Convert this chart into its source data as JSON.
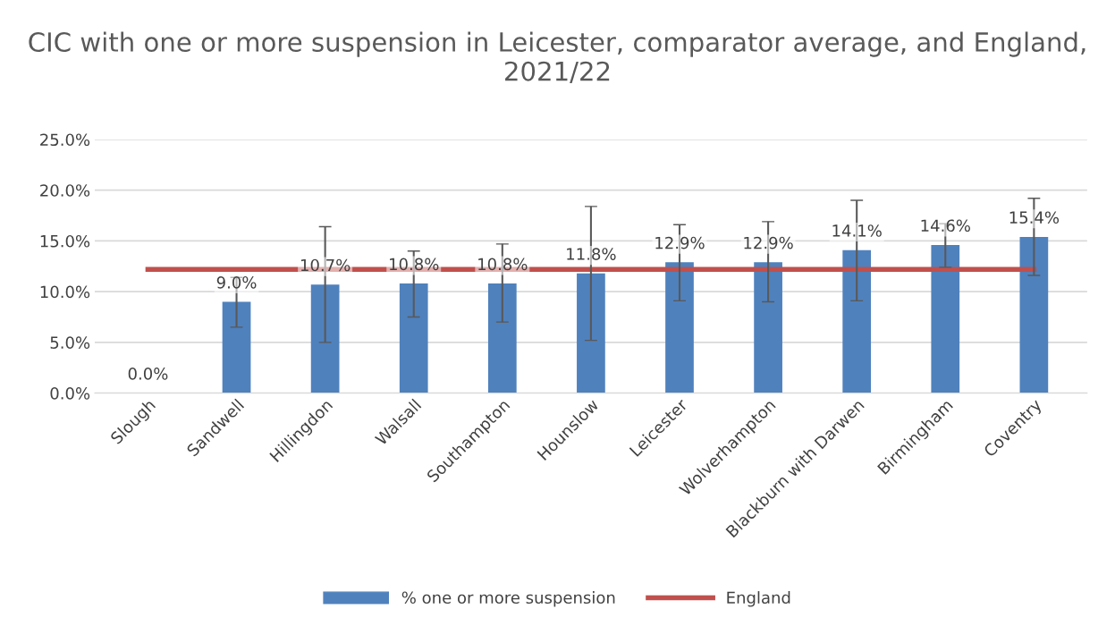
{
  "chart_data": {
    "type": "bar",
    "title": "CIC with one or more suspension in Leicester, comparator average, and England, 2021/22",
    "categories": [
      "Slough",
      "Sandwell",
      "Hillingdon",
      "Walsall",
      "Southampton",
      "Hounslow",
      "Leicester",
      "Wolverhampton",
      "Blackburn with Darwen",
      "Birmingham",
      "Coventry"
    ],
    "series": [
      {
        "name": "% one or more suspension",
        "color": "#4f81bd",
        "values": [
          0.0,
          9.0,
          10.7,
          10.8,
          10.8,
          11.8,
          12.9,
          12.9,
          14.1,
          14.6,
          15.4
        ],
        "value_labels": [
          "0.0%",
          "9.0%",
          "10.7%",
          "10.8%",
          "10.8%",
          "11.8%",
          "12.9%",
          "12.9%",
          "14.1%",
          "14.6%",
          "15.4%"
        ],
        "errors": [
          null,
          [
            6.5,
            11.4
          ],
          [
            5.0,
            16.4
          ],
          [
            7.5,
            14.0
          ],
          [
            7.0,
            14.7
          ],
          [
            5.2,
            18.4
          ],
          [
            9.1,
            16.6
          ],
          [
            9.0,
            16.9
          ],
          [
            9.1,
            19.0
          ],
          [
            12.4,
            16.7
          ],
          [
            11.6,
            19.2
          ]
        ]
      },
      {
        "name": "England",
        "type": "line",
        "color": "#c0504d",
        "values": [
          12.2,
          12.2,
          12.2,
          12.2,
          12.2,
          12.2,
          12.2,
          12.2,
          12.2,
          12.2,
          12.2
        ]
      }
    ],
    "ylim": [
      0,
      25
    ],
    "yticks": [
      {
        "value": 0,
        "label": "0.0%"
      },
      {
        "value": 5,
        "label": "5.0%"
      },
      {
        "value": 10,
        "label": "10.0%"
      },
      {
        "value": 15,
        "label": "15.0%"
      },
      {
        "value": 20,
        "label": "20.0%"
      },
      {
        "value": 25,
        "label": "25.0%"
      }
    ],
    "grid": "y",
    "legend": "bottom",
    "marker": "none"
  }
}
